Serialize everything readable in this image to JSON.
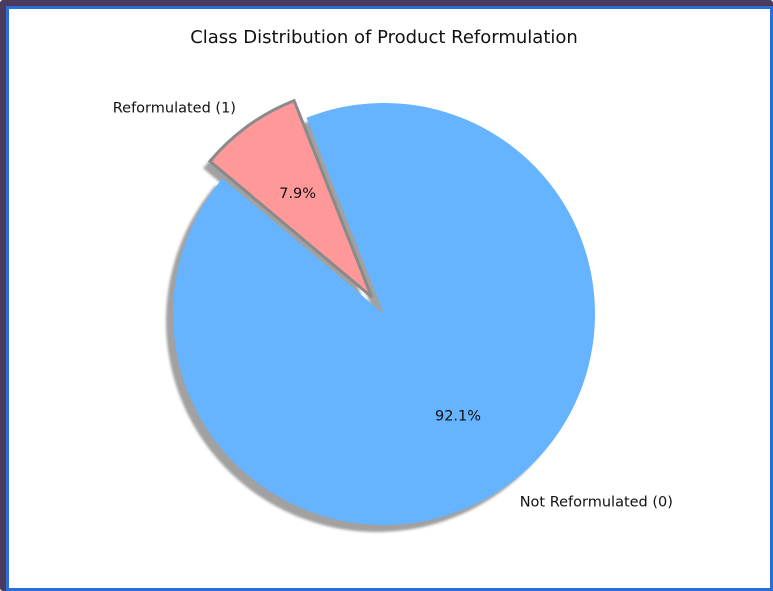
{
  "chart_data": {
    "type": "pie",
    "title": "Class Distribution of Product Reformulation",
    "slices": [
      {
        "label": "Not Reformulated (0)",
        "value": 92.1,
        "pct_label": "92.1%",
        "color": "#66b3ff",
        "explode": 0
      },
      {
        "label": "Reformulated (1)",
        "value": 7.9,
        "pct_label": "7.9%",
        "color": "#ff9999",
        "explode": 0.1
      }
    ],
    "start_angle_deg": 140,
    "shadow": true
  }
}
